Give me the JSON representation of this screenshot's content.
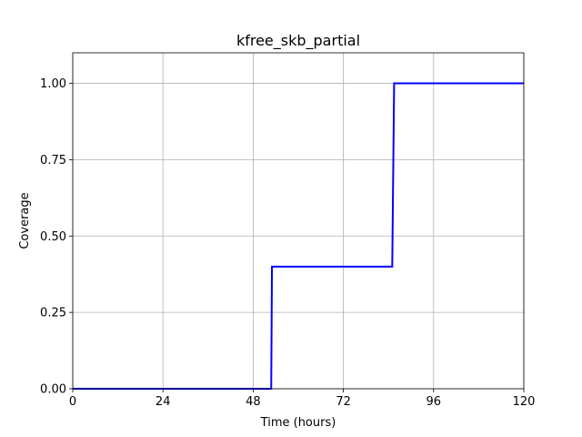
{
  "chart_data": {
    "type": "line",
    "title": "kfree_skb_partial",
    "xlabel": "Time (hours)",
    "ylabel": "Coverage",
    "xlim": [
      0,
      120
    ],
    "ylim": [
      0,
      1.1
    ],
    "x_ticks": [
      0,
      24,
      48,
      72,
      96,
      120
    ],
    "y_ticks": [
      0.0,
      0.25,
      0.5,
      0.75,
      1.0
    ],
    "x_tick_labels": [
      "0",
      "24",
      "48",
      "72",
      "96",
      "120"
    ],
    "y_tick_labels": [
      "0.00",
      "0.25",
      "0.50",
      "0.75",
      "1.00"
    ],
    "grid": true,
    "legend": false,
    "series": [
      {
        "color": "#0000ff",
        "x": [
          0,
          52.8,
          53.0,
          85.0,
          85.5,
          120
        ],
        "y": [
          0.0,
          0.0,
          0.4,
          0.4,
          1.0,
          1.0
        ]
      }
    ]
  }
}
